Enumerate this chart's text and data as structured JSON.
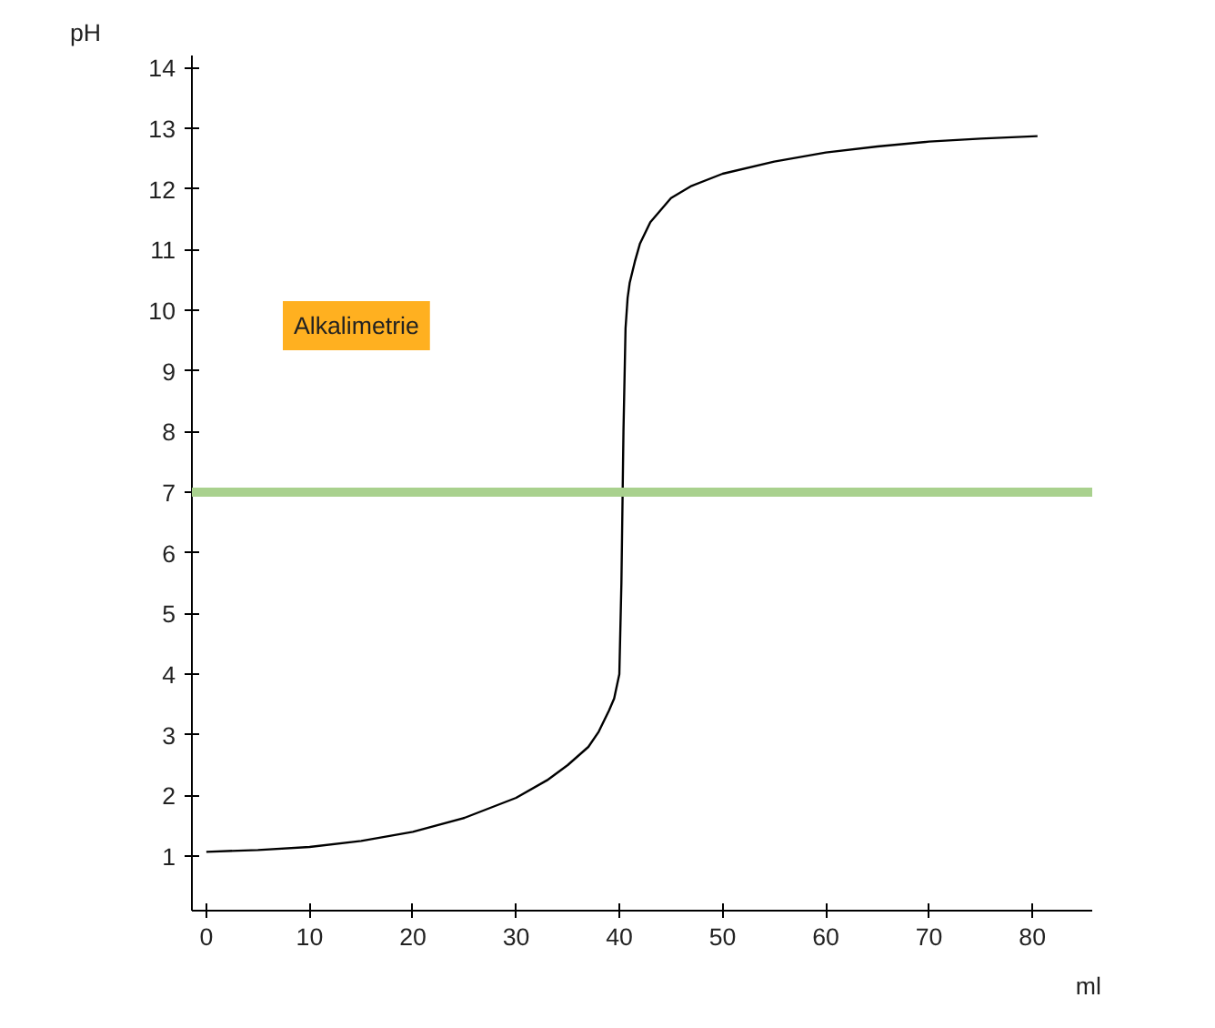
{
  "chart_data": {
    "type": "line",
    "xlabel": "ml",
    "ylabel": "pH",
    "annotations": [
      "Alkalimetrie"
    ],
    "x": [
      0,
      5,
      10,
      15,
      20,
      25,
      30,
      33,
      35,
      37,
      38,
      39,
      39.5,
      40,
      40.2,
      40.4,
      40.6,
      40.8,
      41,
      41.5,
      42,
      43,
      45,
      47,
      50,
      55,
      60,
      65,
      70,
      75,
      80.5
    ],
    "series": [
      {
        "color": "#000000",
        "values": [
          1.07,
          1.1,
          1.15,
          1.25,
          1.4,
          1.63,
          1.96,
          2.25,
          2.5,
          2.8,
          3.05,
          3.4,
          3.6,
          4.0,
          5.5,
          8.0,
          9.7,
          10.2,
          10.45,
          10.8,
          11.1,
          11.45,
          11.85,
          12.05,
          12.25,
          12.45,
          12.6,
          12.7,
          12.78,
          12.83,
          12.87
        ]
      }
    ],
    "xlim": [
      -1.4,
      85.8
    ],
    "ylim": [
      0.1,
      14.2
    ],
    "xticks": [
      0,
      10,
      20,
      30,
      40,
      50,
      60,
      70,
      80
    ],
    "yticks": [
      1,
      2,
      3,
      4,
      5,
      6,
      7,
      8,
      9,
      10,
      11,
      12,
      13,
      14
    ],
    "ref_lines": [
      {
        "axis": "y",
        "value": 7,
        "color": "#a9d18e"
      }
    ],
    "grid": false,
    "marker": "none",
    "line_style": "solid"
  }
}
